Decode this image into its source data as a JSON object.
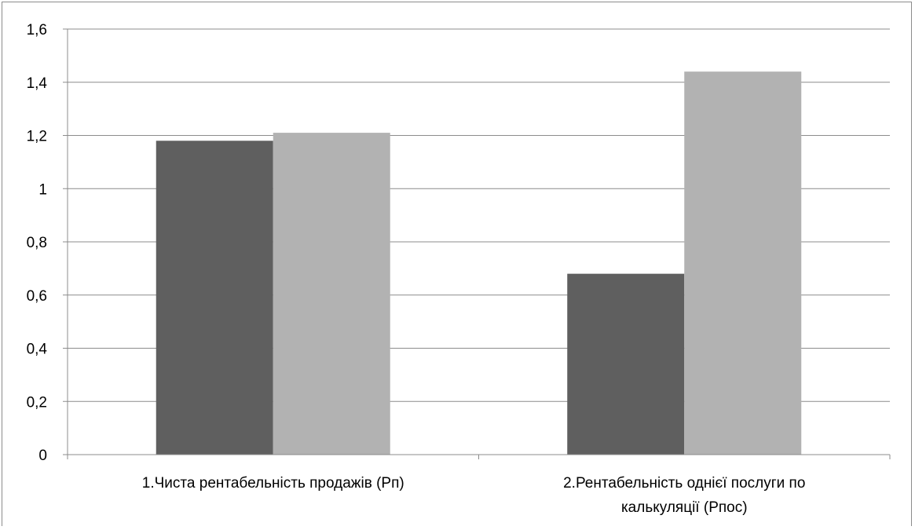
{
  "chart_data": {
    "type": "bar",
    "categories": [
      [
        "1.Чиста рентабельність продажів (Рп)"
      ],
      [
        "2.Рентабельність однієї послуги  по",
        "калькуляції (Рпос)"
      ]
    ],
    "series": [
      {
        "values": [
          1.18,
          0.68
        ],
        "color": "#5f5f5f"
      },
      {
        "values": [
          1.21,
          1.44
        ],
        "color": "#b2b2b2"
      }
    ],
    "ylim": [
      0,
      1.6
    ],
    "yticks": [
      0,
      0.2,
      0.4,
      0.6,
      0.8,
      1,
      1.2,
      1.4,
      1.6
    ],
    "ytick_labels": [
      "0",
      "0,2",
      "0,4",
      "0,6",
      "0,8",
      "1",
      "1,2",
      "1,4",
      "1,6"
    ],
    "grid": true,
    "legend": false
  }
}
